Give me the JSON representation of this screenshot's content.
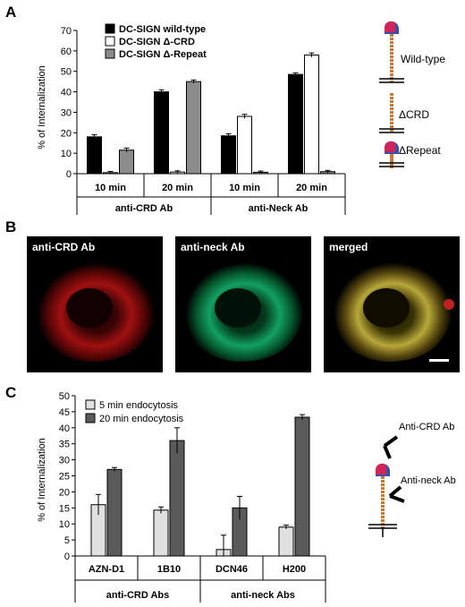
{
  "panels": {
    "A": {
      "letter": "A",
      "chart_data": {
        "type": "bar",
        "ylabel": "% of Internalization",
        "ylim": [
          0,
          70
        ],
        "yticks": [
          0,
          10,
          20,
          30,
          40,
          50,
          60,
          70
        ],
        "categories": [
          "10 min",
          "20 min",
          "10 min",
          "20 min"
        ],
        "groups": [
          "anti-CRD Ab",
          "anti-Neck Ab"
        ],
        "series": [
          {
            "name": "DC-SIGN wild-type",
            "color": "#000000",
            "values": [
              18,
              40,
              18.5,
              48.5
            ],
            "errors": [
              1.0,
              1.0,
              1.0,
              0.8
            ]
          },
          {
            "name": "DC-SIGN Δ-CRD",
            "color": "#ffffff",
            "values": [
              0.5,
              0.8,
              28,
              58
            ],
            "errors": [
              0.6,
              0.6,
              1.0,
              1.0
            ]
          },
          {
            "name": "DC-SIGN Δ-Repeat",
            "color": "#8c8c8c",
            "values": [
              11.5,
              45,
              0.7,
              1.0
            ],
            "errors": [
              1.0,
              0.8,
              0.6,
              0.6
            ]
          }
        ],
        "legend": "top-left",
        "grid": false
      },
      "schematic_labels": [
        "Wild-type",
        "ΔCRD",
        "ΔRepeat"
      ]
    },
    "B": {
      "letter": "B",
      "images": [
        "anti-CRD Ab",
        "anti-neck  Ab",
        "merged"
      ]
    },
    "C": {
      "letter": "C",
      "chart_data": {
        "type": "bar",
        "ylabel": "% of Internalization",
        "ylim": [
          0,
          50
        ],
        "yticks": [
          0,
          5,
          10,
          15,
          20,
          25,
          30,
          35,
          40,
          45,
          50
        ],
        "categories": [
          "AZN-D1",
          "1B10",
          "DCN46",
          "H200"
        ],
        "groups": [
          "anti-CRD Abs",
          "anti-neck Abs"
        ],
        "series": [
          {
            "name": "5 min endocytosis",
            "color": "#e0e0e0",
            "values": [
              16,
              14.3,
              2,
              9
            ],
            "errors": [
              3.2,
              1.0,
              4.5,
              0.6
            ]
          },
          {
            "name": "20 min endocytosis",
            "color": "#5a5a5a",
            "values": [
              27,
              36,
              15,
              43.3
            ],
            "errors": [
              0.6,
              4.0,
              3.6,
              0.8
            ]
          }
        ],
        "legend": "top-left",
        "grid": false
      },
      "schematic_labels": [
        "Anti-CRD Ab",
        "Anti-neck Ab"
      ]
    }
  }
}
